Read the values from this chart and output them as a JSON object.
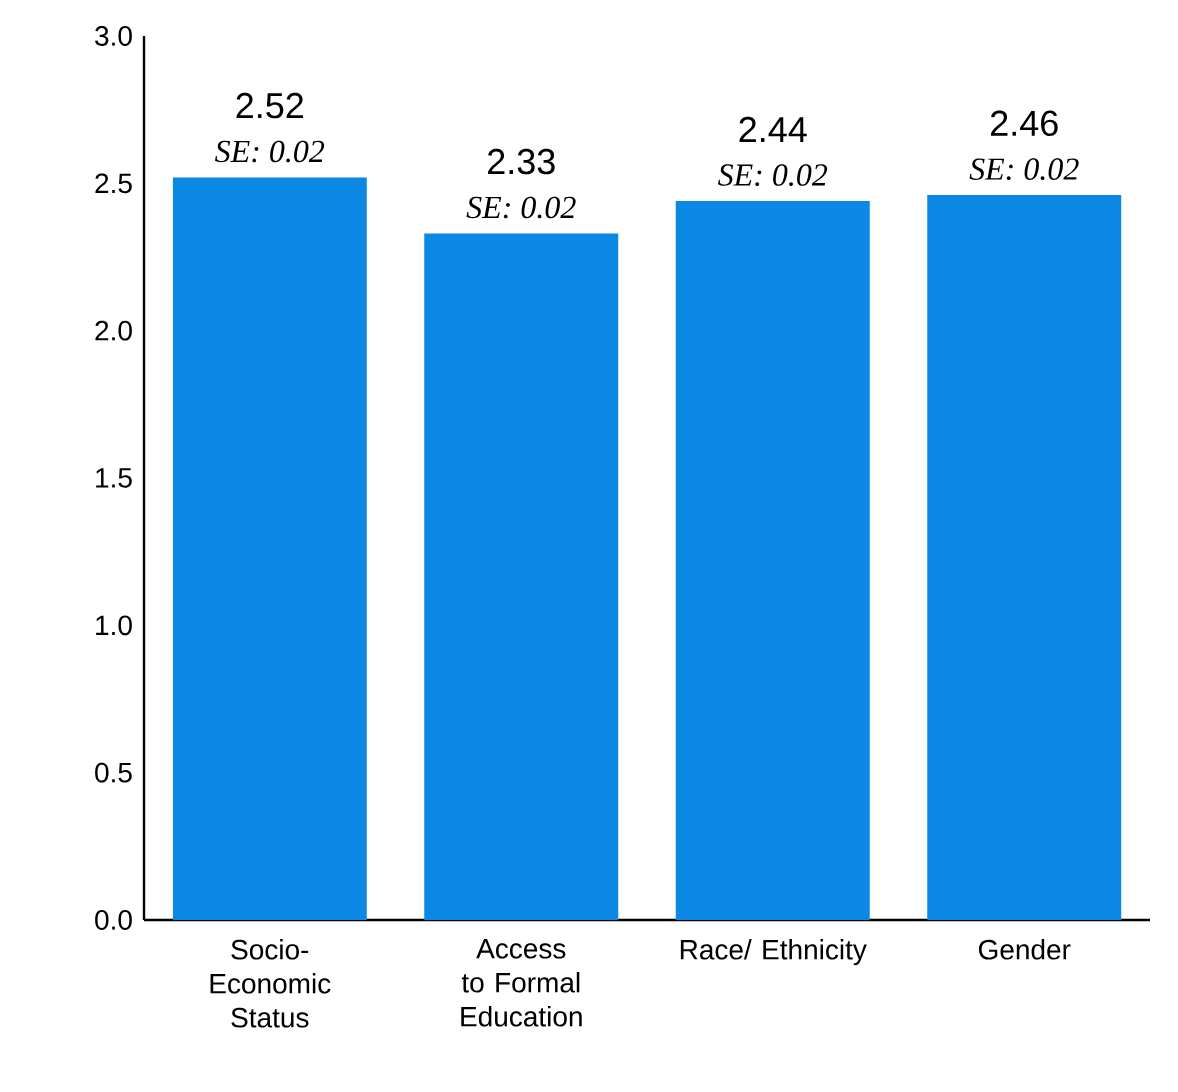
{
  "chart_data": {
    "type": "bar",
    "categories": [
      "Socio-Economic Status",
      "Access to Formal Education",
      "Race/ Ethnicity",
      "Gender"
    ],
    "values": [
      2.52,
      2.33,
      2.44,
      2.46
    ],
    "color": "#0a88e3",
    "data_labels": true,
    "annotations": [
      {
        "text": "SE: 0.02",
        "x": "Socio-Economic Status",
        "y": 2.52
      },
      {
        "text": "SE: 0.02",
        "x": "Access to Formal Education",
        "y": 2.33
      },
      {
        "text": "SE: 0.02",
        "x": "Race/ Ethnicity",
        "y": 2.44
      },
      {
        "text": "SE: 0.02",
        "x": "Gender",
        "y": 2.46
      }
    ],
    "ylim": [
      0,
      3
    ],
    "yticks": [
      {
        "value": 0,
        "label": "0.0"
      },
      0.5,
      {
        "value": 1,
        "label": "1.0"
      },
      1.5,
      {
        "value": 2,
        "label": "2.0"
      },
      2.5,
      {
        "value": 3,
        "label": "3.0"
      }
    ],
    "grid": false
  }
}
